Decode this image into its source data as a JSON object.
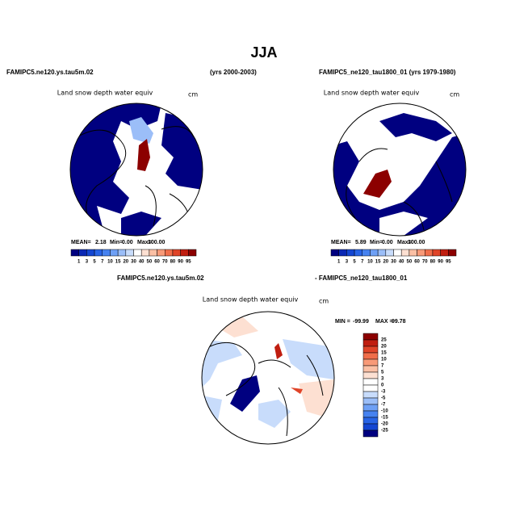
{
  "title": "JJA",
  "panels": [
    {
      "case": "FAMIPC5.ne120.ys.tau5m.02",
      "years": "(yrs 2000-2003)",
      "variable": "Land snow depth water equiv",
      "units": "cm",
      "stats": [
        "MEAN=",
        "2.18",
        "Min=",
        "0.00",
        "Max=",
        "100.00"
      ]
    },
    {
      "case": "FAMIPC5_ne120_tau1800_01 (yrs 1979-1980)",
      "variable": "Land snow depth water equiv",
      "units": "cm",
      "stats": [
        "MEAN=",
        "5.89",
        "Min=",
        "0.00",
        "Max=",
        "100.00"
      ]
    },
    {
      "case": "FAMIPC5.ne120.ys.tau5m.02",
      "case2": "- FAMIPC5_ne120_tau1800_01",
      "variable": "Land snow depth water equiv",
      "units": "cm",
      "stats": [
        "MIN =",
        "-99.99",
        "MAX =",
        "99.78"
      ]
    }
  ],
  "colorbar": {
    "labels": [
      "1",
      "3",
      "5",
      "7",
      "10",
      "15",
      "20",
      "30",
      "40",
      "50",
      "60",
      "70",
      "80",
      "90",
      "95"
    ],
    "colors": [
      "#000080",
      "#0a28b4",
      "#1446d2",
      "#2864e6",
      "#4682f0",
      "#6ea0f5",
      "#9bbef8",
      "#c8dcfb",
      "#ffffff",
      "#fde0d2",
      "#fbc0a5",
      "#f89a78",
      "#f06e4a",
      "#e04428",
      "#c01e10",
      "#8c0000"
    ]
  },
  "diff_colorbar": {
    "labels": [
      "25",
      "20",
      "15",
      "10",
      "7",
      "5",
      "3",
      "0",
      "-3",
      "-5",
      "-7",
      "-10",
      "-15",
      "-20",
      "-25"
    ],
    "colors": [
      "#8c0000",
      "#c01e10",
      "#e04428",
      "#f06e4a",
      "#f89a78",
      "#fbc0a5",
      "#fde0d2",
      "#ffffff",
      "#ffffff",
      "#c8dcfb",
      "#9bbef8",
      "#6ea0f5",
      "#4682f0",
      "#2864e6",
      "#1446d2",
      "#000080"
    ]
  }
}
